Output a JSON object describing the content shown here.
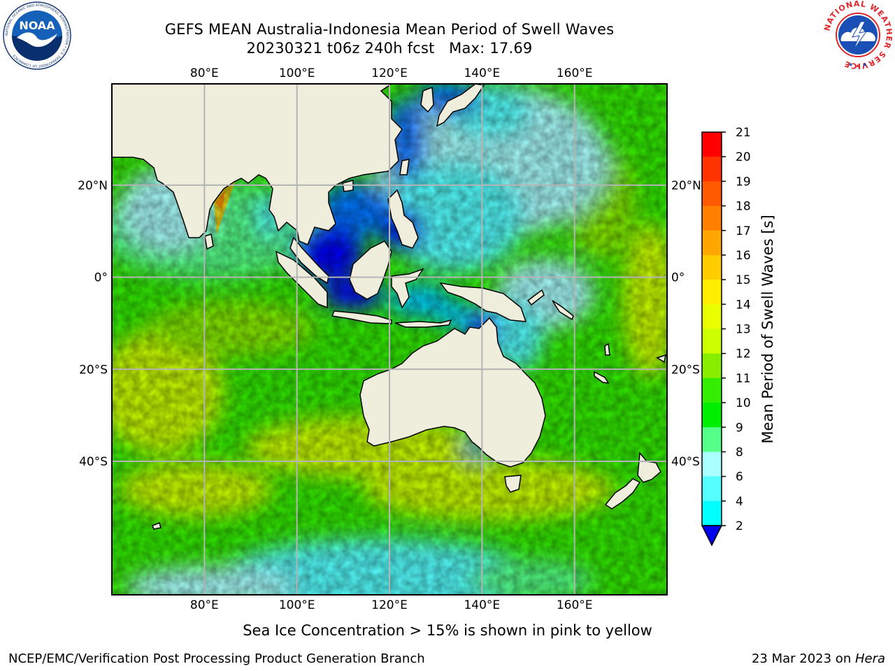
{
  "titles": {
    "line1": "GEFS MEAN Australia-Indonesia Mean Period of Swell Waves",
    "line2": "20230321 t06z 240h fcst   Max: 17.69"
  },
  "footnote": "Sea Ice Concentration > 15% is shown in pink to yellow",
  "credits": {
    "left": "NCEP/EMC/Verification Post Processing Product Generation Branch",
    "date": "23 Mar 2023 on ",
    "machine": "Hera"
  },
  "logos": {
    "noaa_text": "NOAA",
    "noaa_ring": "NATIONAL OCEANIC AND ATMOSPHERIC ADMINISTRATION • U.S. DEPARTMENT OF COMMERCE",
    "nws_ring": "NATIONAL WEATHER SERVICE"
  },
  "map": {
    "lon_range": [
      60,
      180
    ],
    "lat_range": [
      -69,
      42
    ],
    "lon_ticks": [
      "80°E",
      "100°E",
      "120°E",
      "140°E",
      "160°E"
    ],
    "lat_ticks": [
      "20°N",
      "0°",
      "20°S",
      "40°S"
    ],
    "grid": true,
    "land_color": "#efeddc",
    "max_value": 17.69
  },
  "colorbar": {
    "label": "Mean Period of Swell Waves [s]",
    "ticks": [
      "21",
      "20",
      "19",
      "18",
      "17",
      "16",
      "15",
      "14",
      "13",
      "12",
      "11",
      "10",
      "9",
      "8",
      "6",
      "4",
      "2"
    ],
    "colors": [
      "#ff0000",
      "#ff3300",
      "#ff5a00",
      "#ff8000",
      "#ffa600",
      "#ffcc00",
      "#ffee00",
      "#eaff00",
      "#ccff00",
      "#88ee00",
      "#33ee00",
      "#00ee00",
      "#55ff88",
      "#aaffff",
      "#55ffff",
      "#00ffff",
      "#00ccff",
      "#0077ff",
      "#0000ff"
    ],
    "extend": "min",
    "extend_color": "#0000ee"
  }
}
